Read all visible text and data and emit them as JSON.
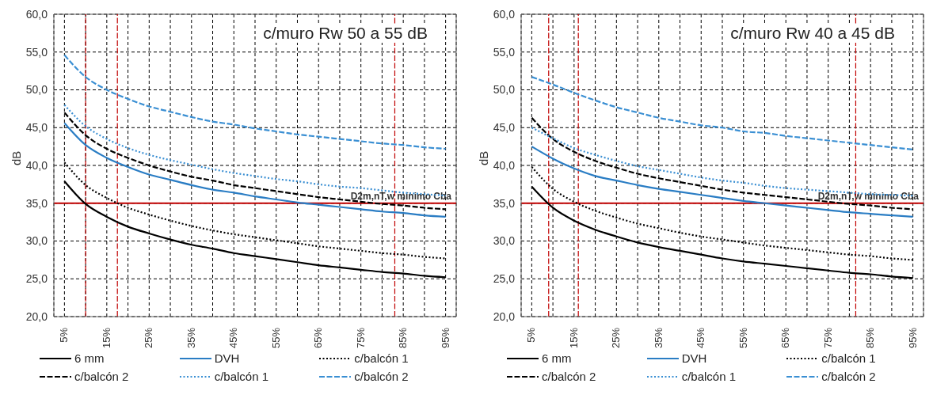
{
  "chart_data": [
    {
      "type": "line",
      "title": "c/muro Rw 50 a 55 dB",
      "ylabel": "dB",
      "x": [
        5,
        10,
        15,
        20,
        25,
        30,
        35,
        40,
        45,
        50,
        55,
        60,
        65,
        70,
        75,
        80,
        85,
        90,
        95
      ],
      "xlim": [
        2.5,
        97.5
      ],
      "xticks": [
        {
          "value": 5,
          "label": "5%"
        },
        {
          "value": 10,
          "label": null
        },
        {
          "value": 15,
          "label": "15%"
        },
        {
          "value": 20,
          "label": null
        },
        {
          "value": 25,
          "label": "25%"
        },
        {
          "value": 30,
          "label": null
        },
        {
          "value": 35,
          "label": "35%"
        },
        {
          "value": 40,
          "label": null
        },
        {
          "value": 45,
          "label": "45%"
        },
        {
          "value": 50,
          "label": null
        },
        {
          "value": 55,
          "label": "55%"
        },
        {
          "value": 60,
          "label": null
        },
        {
          "value": 65,
          "label": "65%"
        },
        {
          "value": 70,
          "label": null
        },
        {
          "value": 75,
          "label": "75%"
        },
        {
          "value": 80,
          "label": null
        },
        {
          "value": 85,
          "label": "85%"
        },
        {
          "value": 90,
          "label": null
        },
        {
          "value": 95,
          "label": "95%"
        }
      ],
      "ylim": [
        20,
        60
      ],
      "yticks": [
        {
          "value": 20,
          "label": "20,0"
        },
        {
          "value": 25,
          "label": "25,0"
        },
        {
          "value": 30,
          "label": "30,0"
        },
        {
          "value": 35,
          "label": "35,0"
        },
        {
          "value": 40,
          "label": "40,0"
        },
        {
          "value": 45,
          "label": "45,0"
        },
        {
          "value": 50,
          "label": "50,0"
        },
        {
          "value": 55,
          "label": "55,0"
        },
        {
          "value": 60,
          "label": "60,0"
        }
      ],
      "grid": true,
      "legend": "bottom",
      "series": [
        {
          "name": "6 mm",
          "color": "#000000",
          "line_style": "solid",
          "values": [
            37.9,
            34.9,
            33.2,
            31.9,
            31.0,
            30.2,
            29.5,
            29.0,
            28.4,
            28.0,
            27.6,
            27.2,
            26.8,
            26.5,
            26.2,
            25.9,
            25.7,
            25.4,
            25.2
          ]
        },
        {
          "name": "DVH",
          "color": "#2a7dc4",
          "line_style": "solid",
          "values": [
            45.6,
            42.7,
            41.0,
            39.8,
            38.8,
            38.1,
            37.4,
            36.8,
            36.4,
            35.9,
            35.5,
            35.1,
            34.8,
            34.5,
            34.2,
            33.9,
            33.7,
            33.4,
            33.2
          ]
        },
        {
          "name": "c/balcón 1",
          "color": "#000000",
          "line_style": "dotted",
          "values": [
            40.4,
            37.4,
            35.7,
            34.4,
            33.5,
            32.7,
            32.0,
            31.4,
            30.9,
            30.5,
            30.1,
            29.7,
            29.3,
            29.0,
            28.7,
            28.4,
            28.2,
            27.9,
            27.7
          ]
        },
        {
          "name": "c/balcón 2",
          "color": "#000000",
          "line_style": "dashed",
          "values": [
            47.0,
            44.0,
            42.2,
            41.0,
            40.0,
            39.2,
            38.5,
            38.0,
            37.4,
            37.0,
            36.6,
            36.2,
            35.8,
            35.5,
            35.2,
            34.9,
            34.7,
            34.4,
            34.2
          ]
        },
        {
          "name": "c/balcón 1",
          "color": "#3a8fd3",
          "line_style": "dotted",
          "values": [
            48.0,
            45.2,
            43.5,
            42.3,
            41.4,
            40.7,
            40.1,
            39.5,
            39.0,
            38.6,
            38.2,
            37.9,
            37.5,
            37.2,
            37.0,
            36.7,
            36.4,
            36.2,
            36.0
          ]
        },
        {
          "name": "c/balcón 2",
          "color": "#3a8fd3",
          "line_style": "dashed",
          "values": [
            54.6,
            51.7,
            50.0,
            48.8,
            47.8,
            47.1,
            46.4,
            45.8,
            45.4,
            44.9,
            44.5,
            44.1,
            43.8,
            43.5,
            43.2,
            42.9,
            42.7,
            42.4,
            42.2
          ]
        }
      ],
      "ref_lines": [
        {
          "axis": "y",
          "value": 35,
          "label": "D2m,nT,w mínimo Cba",
          "color": "#c00000",
          "line_style": "solid"
        },
        {
          "axis": "x",
          "value": 10,
          "color": "#c00000",
          "line_style": "dashed"
        },
        {
          "axis": "x",
          "value": 17.5,
          "color": "#c00000",
          "line_style": "dashed"
        },
        {
          "axis": "x",
          "value": 83,
          "color": "#c00000",
          "line_style": "dashed"
        }
      ]
    },
    {
      "type": "line",
      "title": "c/muro Rw 40 a 45 dB",
      "ylabel": "dB",
      "x": [
        5,
        10,
        15,
        20,
        25,
        30,
        35,
        40,
        45,
        50,
        55,
        60,
        65,
        70,
        75,
        80,
        85,
        90,
        95
      ],
      "xlim": [
        2.5,
        97.5
      ],
      "xticks": [
        {
          "value": 5,
          "label": "5%"
        },
        {
          "value": 10,
          "label": null
        },
        {
          "value": 15,
          "label": "15%"
        },
        {
          "value": 20,
          "label": null
        },
        {
          "value": 25,
          "label": "25%"
        },
        {
          "value": 30,
          "label": null
        },
        {
          "value": 35,
          "label": "35%"
        },
        {
          "value": 40,
          "label": null
        },
        {
          "value": 45,
          "label": "45%"
        },
        {
          "value": 50,
          "label": null
        },
        {
          "value": 55,
          "label": "55%"
        },
        {
          "value": 60,
          "label": null
        },
        {
          "value": 65,
          "label": "65%"
        },
        {
          "value": 70,
          "label": null
        },
        {
          "value": 75,
          "label": "75%"
        },
        {
          "value": 80,
          "label": null
        },
        {
          "value": 85,
          "label": "85%"
        },
        {
          "value": 90,
          "label": null
        },
        {
          "value": 95,
          "label": "95%"
        }
      ],
      "ylim": [
        20,
        60
      ],
      "yticks": [
        {
          "value": 20,
          "label": "20,0"
        },
        {
          "value": 25,
          "label": "25,0"
        },
        {
          "value": 30,
          "label": "30,0"
        },
        {
          "value": 35,
          "label": "35,0"
        },
        {
          "value": 40,
          "label": "40,0"
        },
        {
          "value": 45,
          "label": "45,0"
        },
        {
          "value": 50,
          "label": "50,0"
        },
        {
          "value": 55,
          "label": "55,0"
        },
        {
          "value": 60,
          "label": "60,0"
        }
      ],
      "grid": true,
      "legend": "bottom",
      "series": [
        {
          "name": "6 mm",
          "color": "#000000",
          "line_style": "solid",
          "values": [
            37.2,
            34.4,
            32.7,
            31.5,
            30.6,
            29.8,
            29.2,
            28.7,
            28.2,
            27.7,
            27.3,
            27.0,
            26.7,
            26.4,
            26.1,
            25.8,
            25.6,
            25.3,
            25.1
          ]
        },
        {
          "name": "DVH",
          "color": "#2a7dc4",
          "line_style": "solid",
          "values": [
            42.5,
            40.9,
            39.6,
            38.6,
            38.0,
            37.4,
            36.9,
            36.5,
            36.1,
            35.7,
            35.3,
            35.0,
            34.7,
            34.4,
            34.1,
            33.8,
            33.6,
            33.4,
            33.2
          ]
        },
        {
          "name": "c/balcón 1",
          "color": "#000000",
          "line_style": "dotted",
          "values": [
            39.8,
            36.9,
            35.2,
            34.0,
            33.1,
            32.3,
            31.7,
            31.1,
            30.6,
            30.2,
            29.8,
            29.4,
            29.1,
            28.8,
            28.5,
            28.2,
            28.0,
            27.7,
            27.5
          ]
        },
        {
          "name": "c/balcón 2",
          "color": "#000000",
          "line_style": "dashed",
          "values": [
            46.3,
            43.5,
            41.8,
            40.6,
            39.7,
            38.9,
            38.3,
            37.8,
            37.3,
            36.8,
            36.4,
            36.1,
            35.8,
            35.5,
            35.2,
            34.9,
            34.7,
            34.4,
            34.2
          ]
        },
        {
          "name": "c/balcón 1",
          "color": "#3a8fd3",
          "line_style": "dotted",
          "values": [
            45.0,
            43.6,
            42.3,
            41.4,
            40.6,
            39.9,
            39.4,
            38.9,
            38.4,
            38.0,
            37.7,
            37.3,
            37.0,
            36.8,
            36.6,
            36.4,
            36.2,
            36.1,
            36.0
          ]
        },
        {
          "name": "c/balcón 2",
          "color": "#3a8fd3",
          "line_style": "dashed",
          "values": [
            51.7,
            50.7,
            49.6,
            48.6,
            47.7,
            47.0,
            46.3,
            45.8,
            45.3,
            45.0,
            44.5,
            44.3,
            43.9,
            43.6,
            43.3,
            43.0,
            42.7,
            42.4,
            42.1
          ]
        }
      ],
      "ref_lines": [
        {
          "axis": "y",
          "value": 35,
          "label": "D2m,nT,w mínimo Cba",
          "color": "#c00000",
          "line_style": "solid"
        },
        {
          "axis": "x",
          "value": 9,
          "color": "#c00000",
          "line_style": "dashed"
        },
        {
          "axis": "x",
          "value": 16,
          "color": "#c00000",
          "line_style": "dashed"
        },
        {
          "axis": "x",
          "value": 81.5,
          "color": "#c00000",
          "line_style": "dashed"
        }
      ]
    }
  ]
}
